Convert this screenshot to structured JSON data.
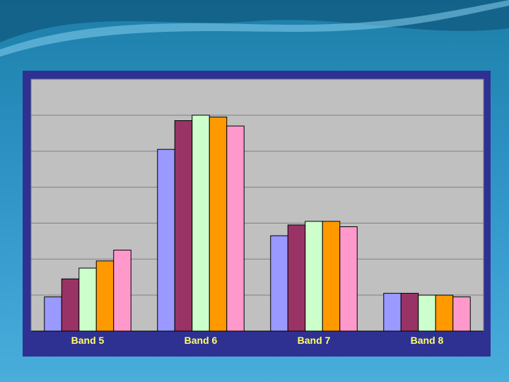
{
  "chart_data": {
    "type": "bar",
    "categories": [
      "Band 5",
      "Band 6",
      "Band 7",
      "Band 8"
    ],
    "series": [
      {
        "values": [
          9.5,
          50.5,
          26.5,
          10.5
        ]
      },
      {
        "values": [
          14.5,
          58.5,
          29.5,
          10.5
        ]
      },
      {
        "values": [
          17.5,
          60.0,
          30.5,
          10.0
        ]
      },
      {
        "values": [
          19.5,
          59.5,
          30.5,
          10.0
        ]
      },
      {
        "values": [
          22.5,
          57.0,
          29.0,
          9.5
        ]
      }
    ],
    "colors": [
      "#9999ff",
      "#993366",
      "#ccffcc",
      "#ff9900",
      "#ff99cc"
    ],
    "ylim": [
      0,
      70
    ],
    "y_major_step": 10,
    "grid": true,
    "legend": "none",
    "title": "",
    "xlabel": "",
    "ylabel": ""
  },
  "theme": {
    "frame": "#2e3192",
    "plot_bg": "#c0c0c0",
    "grid_color": "#808080",
    "label_color": "#ffff66"
  }
}
